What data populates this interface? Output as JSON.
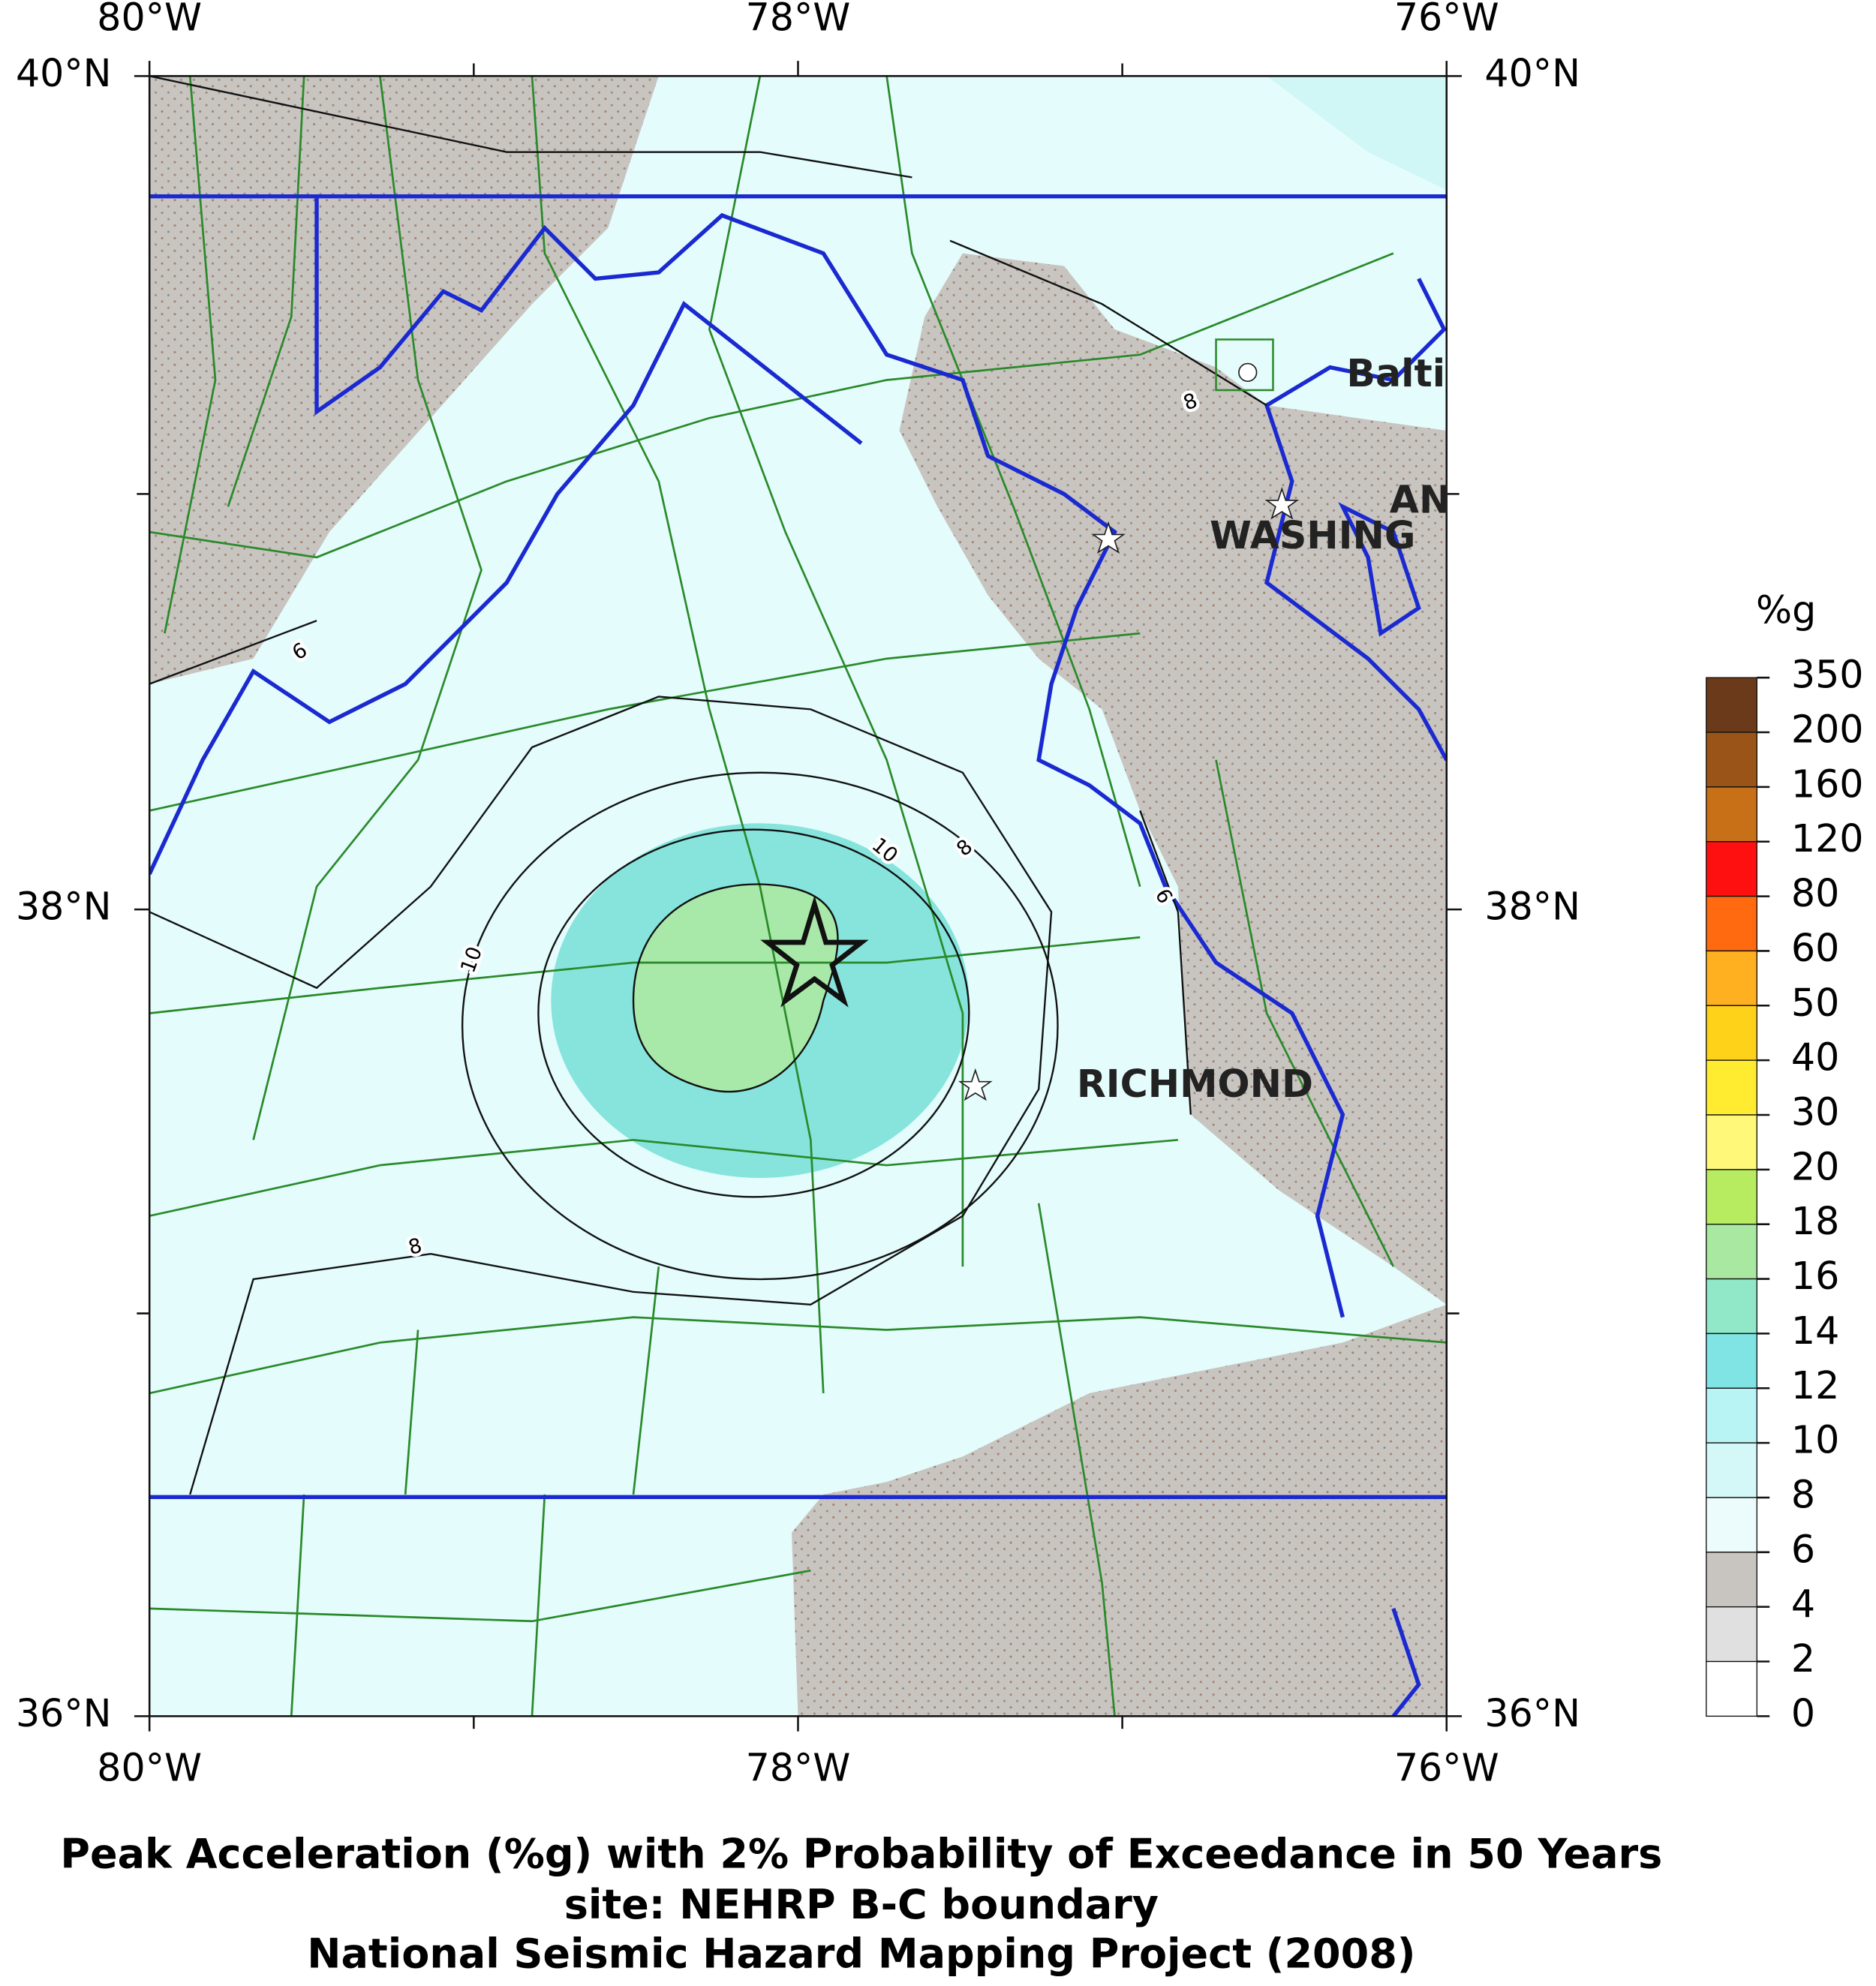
{
  "axes": {
    "top": [
      "80°W",
      "78°W",
      "76°W"
    ],
    "bottom": [
      "80°W",
      "78°W",
      "76°W"
    ],
    "left": [
      "40°N",
      "38°N",
      "36°N"
    ],
    "right": [
      "40°N",
      "38°N",
      "36°N"
    ]
  },
  "cities": [
    "Balti",
    "AN",
    "WASHING",
    "RICHMOND"
  ],
  "contour_labels": [
    "6",
    "8",
    "8",
    "10",
    "6",
    "10",
    "8"
  ],
  "legend": {
    "title": "%g",
    "labels": [
      "350",
      "200",
      "160",
      "120",
      "80",
      "60",
      "50",
      "40",
      "30",
      "20",
      "18",
      "16",
      "14",
      "12",
      "10",
      "8",
      "6",
      "4",
      "2",
      "0"
    ],
    "colors": [
      "#6b3a1a",
      "#9a5418",
      "#c87018",
      "#ff1010",
      "#ff6a10",
      "#ffb020",
      "#ffd21a",
      "#ffec30",
      "#fff878",
      "#b8ec60",
      "#a8e8a0",
      "#90e8c8",
      "#80e4e4",
      "#b8f4f4",
      "#d4f8f8",
      "#ecfcfc",
      "#c8c4c0",
      "#e0e0e0",
      "#ffffff"
    ]
  },
  "title": [
    "Peak Acceleration (%g) with 2% Probability of Exceedance in 50 Years",
    "site: NEHRP B-C boundary",
    "National Seismic Hazard Mapping Project (2008)"
  ]
}
